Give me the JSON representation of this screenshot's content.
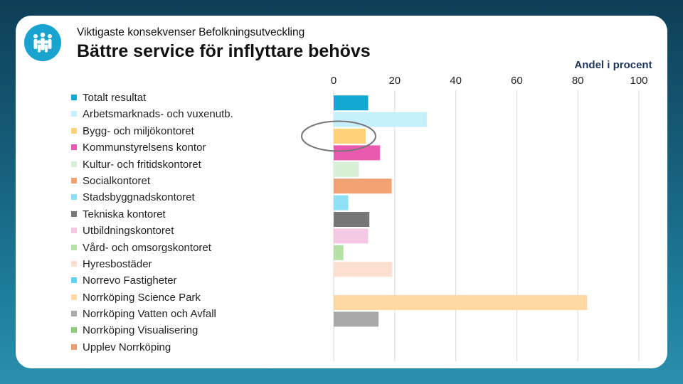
{
  "header": {
    "kicker": "Viktigaste konsekvenser Befolkningsutveckling",
    "title": "Bättre service för inflyttare behövs",
    "logo_icon": "people-group-icon"
  },
  "chart_data": {
    "type": "bar",
    "orientation": "horizontal",
    "unit_label": "Andel i procent",
    "xlim": [
      0,
      100
    ],
    "ticks": [
      "0",
      "20",
      "40",
      "60",
      "80",
      "100"
    ],
    "tick_values": [
      0,
      20,
      40,
      60,
      80,
      100
    ],
    "grid": true,
    "legend_position": "left",
    "categories": [
      "Totalt resultat",
      "Arbetsmarknads- och vuxenutb.",
      "Bygg- och miljökontoret",
      "Kommunstyrelsens kontor",
      "Kultur- och fritidskontoret",
      "Socialkontoret",
      "Stadsbyggnadskontoret",
      "Tekniska kontoret",
      "Utbildningskontoret",
      "Vård- och omsorgskontoret",
      "Hyresbostäder",
      "Norrevo Fastigheter",
      "Norrköping Science Park",
      "Norrköping Vatten och Avfall",
      "Norrköping Visualisering",
      "Upplev Norrköping"
    ],
    "values": [
      11.3,
      30.5,
      10.5,
      15.2,
      8.3,
      19.0,
      4.8,
      11.7,
      11.3,
      3.2,
      19.2,
      null,
      83.0,
      14.7,
      null,
      null
    ],
    "colors": [
      "#12a8d4",
      "#c6f0fb",
      "#ffd27a",
      "#e85aae",
      "#d7efd4",
      "#f0a273",
      "#8fe0f5",
      "#777777",
      "#f5c9e4",
      "#b5e0a6",
      "#fbe0d2",
      "#5fd3ee",
      "#ffd9a2",
      "#a9a9a9",
      "#8fcf7e",
      "#ec9f6e"
    ],
    "highlight_category": "Bygg- och miljökontoret"
  }
}
